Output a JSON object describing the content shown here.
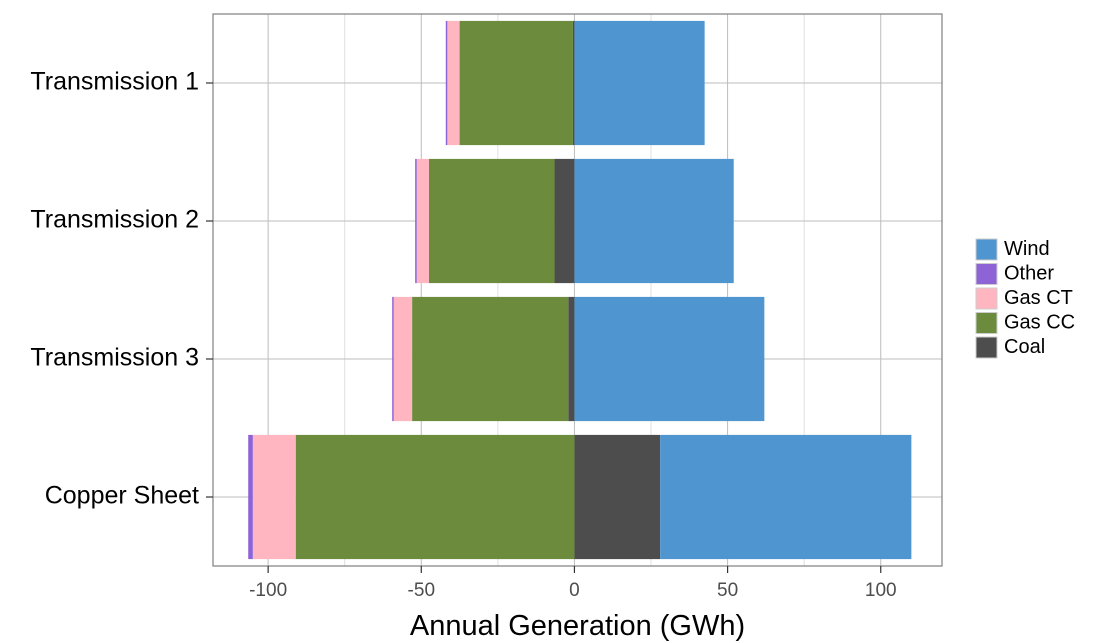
{
  "chart_data": {
    "type": "bar",
    "orientation": "horizontal",
    "stacked": "diverging",
    "categories": [
      "Transmission 1",
      "Transmission 2",
      "Transmission 3",
      "Copper Sheet"
    ],
    "xlabel": "Annual Generation (GWh)",
    "ylabel": "",
    "xlim": [
      -118,
      120
    ],
    "xticks": [
      -100,
      -50,
      0,
      50,
      100
    ],
    "xtick_labels": [
      "-100",
      "-50",
      "0",
      "50",
      "100"
    ],
    "grid": true,
    "legend_position": "right",
    "legend_order": [
      "Wind",
      "Other",
      "Gas CT",
      "Gas CC",
      "Coal"
    ],
    "series": [
      {
        "name": "Wind",
        "color": "#4f95d0",
        "values": [
          42.5,
          52,
          62,
          82
        ]
      },
      {
        "name": "Other",
        "color": "#8e63d6",
        "values": [
          -0.5,
          -0.5,
          -0.5,
          -1.5
        ]
      },
      {
        "name": "Gas CT",
        "color": "#ffb6c1",
        "values": [
          -4,
          -4,
          -6,
          -14
        ]
      },
      {
        "name": "Gas CC",
        "color": "#6c8b3c",
        "values": [
          -37,
          -41,
          -51,
          -91
        ]
      },
      {
        "name": "Coal",
        "color": "#4d4d4d",
        "values": [
          -0.5,
          -6.5,
          -2,
          28
        ]
      }
    ]
  }
}
